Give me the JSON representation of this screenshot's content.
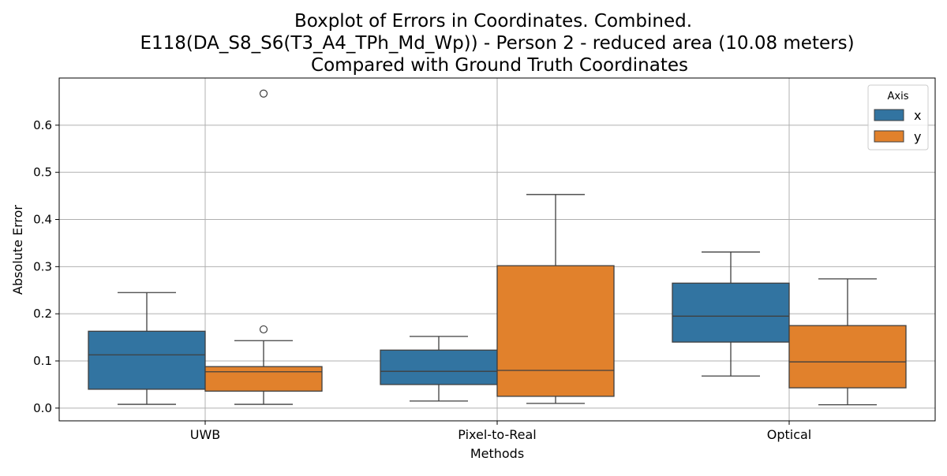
{
  "chart_data": {
    "type": "boxplot",
    "title_lines": [
      "Boxplot of Errors in Coordinates. Combined.",
      "E118(DA_S8_S6(T3_A4_TPh_Md_Wp)) - Person 2 - reduced area (10.08 meters)",
      "Compared with Ground Truth Coordinates"
    ],
    "xlabel": "Methods",
    "ylabel": "Absolute Error",
    "categories": [
      "UWB",
      "Pixel-to-Real",
      "Optical"
    ],
    "ylim": [
      -0.027,
      0.7
    ],
    "yticks": [
      0.0,
      0.1,
      0.2,
      0.3,
      0.4,
      0.5,
      0.6
    ],
    "ytick_labels": [
      "0.0",
      "0.1",
      "0.2",
      "0.3",
      "0.4",
      "0.5",
      "0.6"
    ],
    "grid": true,
    "legend": {
      "title": "Axis",
      "placement": "top-right"
    },
    "series": [
      {
        "name": "x",
        "color": "#3274a1",
        "boxes": [
          {
            "whisker_low": 0.008,
            "q1": 0.04,
            "median": 0.113,
            "q3": 0.163,
            "whisker_high": 0.245,
            "outliers": []
          },
          {
            "whisker_low": 0.015,
            "q1": 0.05,
            "median": 0.078,
            "q3": 0.123,
            "whisker_high": 0.152,
            "outliers": []
          },
          {
            "whisker_low": 0.068,
            "q1": 0.14,
            "median": 0.195,
            "q3": 0.265,
            "whisker_high": 0.331,
            "outliers": []
          }
        ]
      },
      {
        "name": "y",
        "color": "#e1812c",
        "boxes": [
          {
            "whisker_low": 0.008,
            "q1": 0.036,
            "median": 0.077,
            "q3": 0.088,
            "whisker_high": 0.143,
            "outliers": [
              0.167,
              0.667
            ]
          },
          {
            "whisker_low": 0.01,
            "q1": 0.025,
            "median": 0.08,
            "q3": 0.302,
            "whisker_high": 0.453,
            "outliers": []
          },
          {
            "whisker_low": 0.007,
            "q1": 0.043,
            "median": 0.098,
            "q3": 0.175,
            "whisker_high": 0.274,
            "outliers": []
          }
        ]
      }
    ]
  }
}
